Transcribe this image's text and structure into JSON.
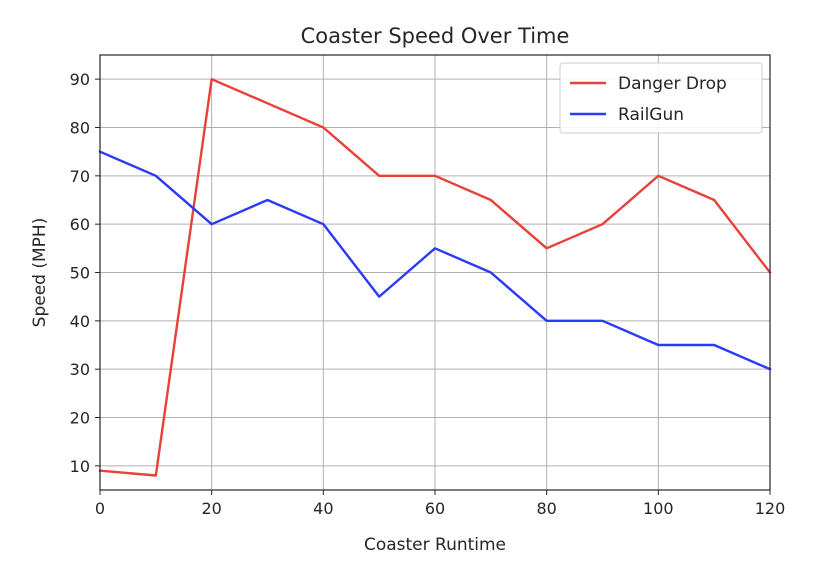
{
  "chart_data": {
    "type": "line",
    "title": "Coaster Speed Over Time",
    "xlabel": "Coaster Runtime",
    "ylabel": "Speed (MPH)",
    "x": [
      0,
      10,
      20,
      30,
      40,
      50,
      60,
      70,
      80,
      90,
      100,
      110,
      120
    ],
    "series": [
      {
        "name": "Danger Drop",
        "color": "#e8413a",
        "values": [
          9,
          8,
          90,
          85,
          80,
          70,
          70,
          65,
          55,
          60,
          70,
          65,
          50
        ]
      },
      {
        "name": "RailGun",
        "color": "#2b3bf5",
        "values": [
          75,
          70,
          60,
          65,
          60,
          45,
          55,
          50,
          40,
          40,
          35,
          35,
          30
        ]
      }
    ],
    "xlim": [
      0,
      120
    ],
    "ylim": [
      5,
      95
    ],
    "xticks": [
      0,
      20,
      40,
      60,
      80,
      100,
      120
    ],
    "yticks": [
      10,
      20,
      30,
      40,
      50,
      60,
      70,
      80,
      90
    ],
    "grid": true,
    "legend_position": "top-right"
  }
}
